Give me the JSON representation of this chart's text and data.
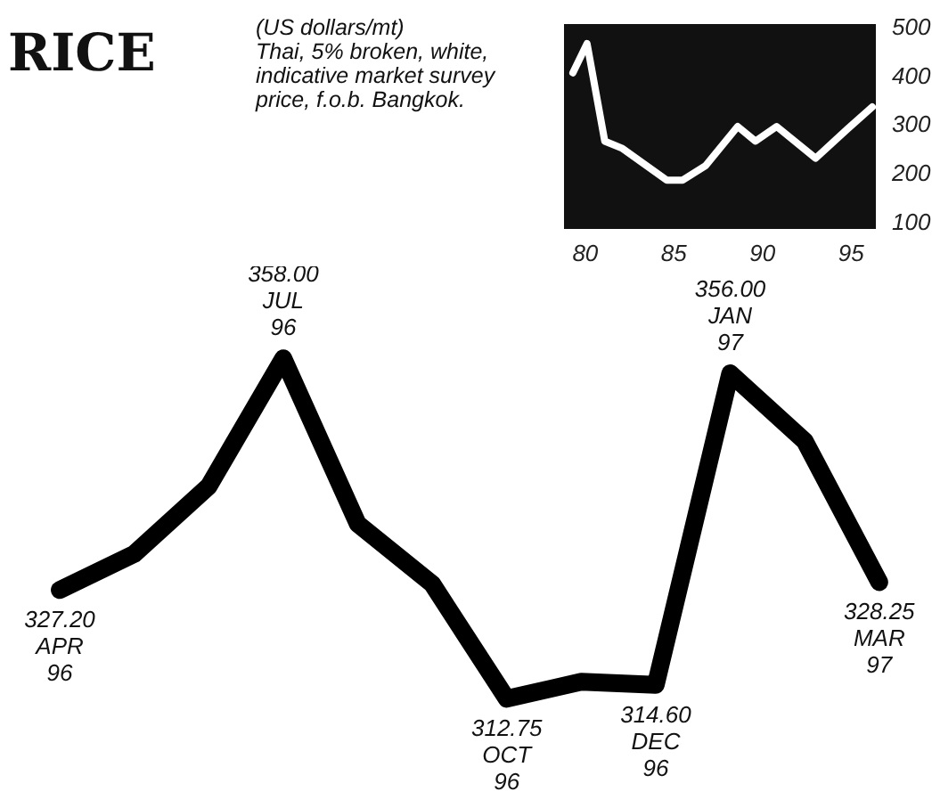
{
  "chart_data": [
    {
      "type": "line",
      "x": [
        79.3,
        80.1,
        81.1,
        82.1,
        84.6,
        85.5,
        86.8,
        88.6,
        89.6,
        90.8,
        93.0,
        94.8,
        96.2
      ],
      "values": [
        405,
        465,
        265,
        250,
        185,
        185,
        215,
        295,
        265,
        295,
        230,
        290,
        335
      ],
      "color": "#ffffff",
      "xlim": [
        78.8,
        96.4
      ],
      "ylim": [
        85,
        505
      ],
      "xticks": [
        80,
        85,
        90,
        95
      ],
      "yticks": [
        100,
        200,
        300,
        400,
        500
      ]
    },
    {
      "type": "line",
      "title": "RICE",
      "subtitle": "(US dollars/mt)",
      "annotations": [
        "Thai, 5% broken, white, indicative market survey price, f.o.b. Bangkok."
      ],
      "categories": [
        "APR 96",
        null,
        null,
        "JUL 96",
        null,
        null,
        "OCT 96",
        null,
        "DEC 96",
        "JAN 97",
        null,
        "MAR 97"
      ],
      "values": [
        327.2,
        332,
        341,
        358,
        336,
        328,
        312.75,
        315,
        314.6,
        356,
        347,
        328.25
      ],
      "value_labels": [
        "327.20",
        null,
        null,
        "358.00",
        null,
        null,
        "312.75",
        null,
        "314.60",
        "356.00",
        null,
        "328.25"
      ],
      "color": "#000000",
      "tick_labels": false
    }
  ]
}
